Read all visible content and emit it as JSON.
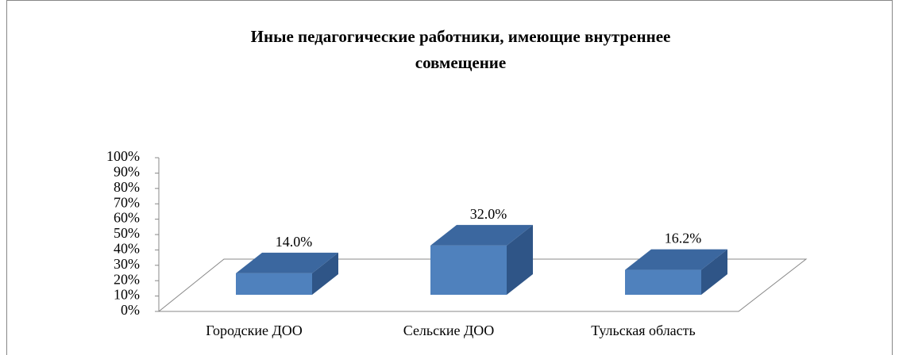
{
  "chart_data": {
    "type": "bar3d",
    "title": "Иные педагогические работники, имеющие внутреннее совмещение",
    "categories": [
      "Городские ДОО",
      "Сельские ДОО",
      "Тульская область"
    ],
    "values": [
      14.0,
      32.0,
      16.2
    ],
    "value_labels": [
      "14.0%",
      "32.0%",
      "16.2%"
    ],
    "color": "#4f81bd",
    "ylim": [
      0,
      100
    ],
    "yticks": [
      {
        "value": 0,
        "label": "0%"
      },
      {
        "value": 10,
        "label": "10%"
      },
      {
        "value": 20,
        "label": "20%"
      },
      {
        "value": 30,
        "label": "30%"
      },
      {
        "value": 40,
        "label": "40%"
      },
      {
        "value": 50,
        "label": "50%"
      },
      {
        "value": 60,
        "label": "60%"
      },
      {
        "value": 70,
        "label": "70%"
      },
      {
        "value": 80,
        "label": "80%"
      },
      {
        "value": 90,
        "label": "90%"
      },
      {
        "value": 100,
        "label": "100%"
      }
    ]
  }
}
